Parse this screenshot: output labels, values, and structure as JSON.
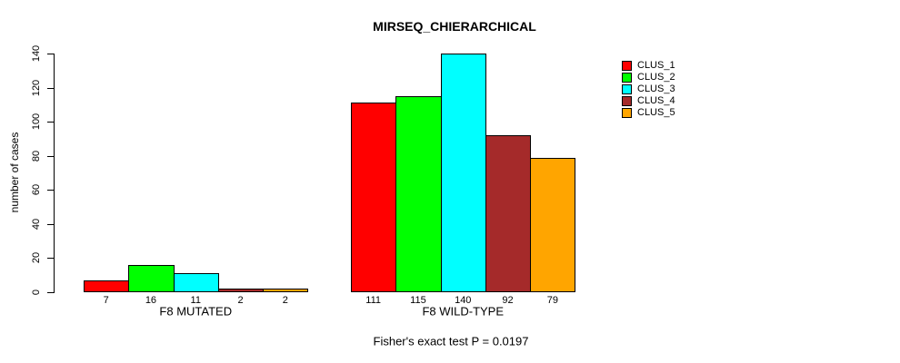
{
  "figure": {
    "background": "#ffffff",
    "axis_color": "#000000",
    "text_color": "#000000"
  },
  "chart_data": {
    "type": "bar",
    "title": "MIRSEQ_CHIERARCHICAL",
    "subtitle": "Fisher's exact test P = 0.0197",
    "xlabel": "",
    "ylabel": "number of cases",
    "ylim": [
      0,
      140
    ],
    "yticks": [
      0,
      20,
      40,
      60,
      80,
      100,
      120,
      140
    ],
    "grid": false,
    "legend_position": "right-outside",
    "categories": [
      "F8 MUTATED",
      "F8 WILD-TYPE"
    ],
    "series": [
      {
        "name": "CLUS_1",
        "color": "#ff0000",
        "values": [
          7,
          111
        ]
      },
      {
        "name": "CLUS_2",
        "color": "#00ff00",
        "values": [
          16,
          115
        ]
      },
      {
        "name": "CLUS_3",
        "color": "#00ffff",
        "values": [
          11,
          140
        ]
      },
      {
        "name": "CLUS_4",
        "color": "#a52a2a",
        "values": [
          2,
          92
        ]
      },
      {
        "name": "CLUS_5",
        "color": "#ffa500",
        "values": [
          2,
          79
        ]
      }
    ],
    "bar_value_labels_shown": true
  }
}
